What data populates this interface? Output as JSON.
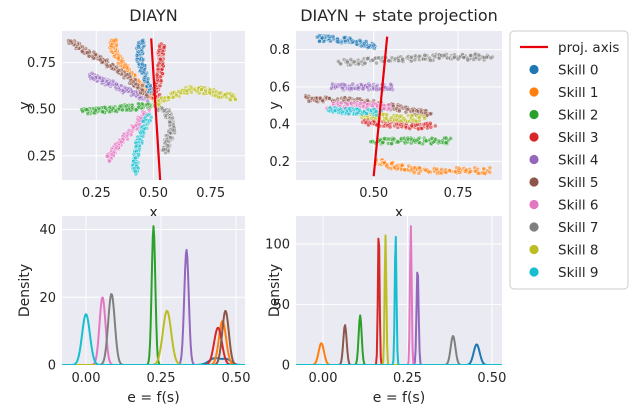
{
  "chart_data": [
    {
      "id": "p1",
      "type": "scatter",
      "title": "DIAYN",
      "xlabel": "x",
      "ylabel": "y",
      "xlim": [
        0.1,
        0.9
      ],
      "ylim": [
        0.12,
        0.92
      ],
      "xticks": [
        0.25,
        0.5,
        0.75
      ],
      "xticklabels": [
        "0.25",
        "0.50",
        "0.75"
      ],
      "yticks": [
        0.25,
        0.5,
        0.75
      ],
      "yticklabels": [
        "0.25",
        "0.50",
        "0.75"
      ],
      "grid": true,
      "projection_line": [
        [
          0.49,
          0.88
        ],
        [
          0.53,
          0.1
        ]
      ],
      "trajectories": [
        {
          "skill": 0,
          "points": [
            [
              0.49,
              0.58
            ],
            [
              0.47,
              0.65
            ],
            [
              0.45,
              0.72
            ],
            [
              0.44,
              0.78
            ],
            [
              0.44,
              0.83
            ],
            [
              0.45,
              0.86
            ]
          ]
        },
        {
          "skill": 1,
          "points": [
            [
              0.48,
              0.57
            ],
            [
              0.43,
              0.64
            ],
            [
              0.38,
              0.72
            ],
            [
              0.34,
              0.79
            ],
            [
              0.32,
              0.84
            ],
            [
              0.33,
              0.86
            ]
          ]
        },
        {
          "skill": 2,
          "points": [
            [
              0.48,
              0.52
            ],
            [
              0.4,
              0.51
            ],
            [
              0.32,
              0.5
            ],
            [
              0.25,
              0.49
            ],
            [
              0.19,
              0.49
            ]
          ]
        },
        {
          "skill": 3,
          "points": [
            [
              0.51,
              0.56
            ],
            [
              0.52,
              0.64
            ],
            [
              0.53,
              0.72
            ],
            [
              0.53,
              0.79
            ],
            [
              0.54,
              0.85
            ]
          ]
        },
        {
          "skill": 4,
          "points": [
            [
              0.47,
              0.56
            ],
            [
              0.4,
              0.59
            ],
            [
              0.33,
              0.63
            ],
            [
              0.27,
              0.66
            ],
            [
              0.22,
              0.68
            ]
          ]
        },
        {
          "skill": 5,
          "points": [
            [
              0.47,
              0.58
            ],
            [
              0.4,
              0.66
            ],
            [
              0.32,
              0.73
            ],
            [
              0.25,
              0.78
            ],
            [
              0.18,
              0.83
            ],
            [
              0.13,
              0.86
            ]
          ]
        },
        {
          "skill": 6,
          "points": [
            [
              0.47,
              0.48
            ],
            [
              0.42,
              0.41
            ],
            [
              0.37,
              0.34
            ],
            [
              0.33,
              0.28
            ],
            [
              0.3,
              0.23
            ]
          ]
        },
        {
          "skill": 7,
          "points": [
            [
              0.51,
              0.52
            ],
            [
              0.56,
              0.48
            ],
            [
              0.58,
              0.44
            ],
            [
              0.58,
              0.38
            ],
            [
              0.56,
              0.32
            ],
            [
              0.55,
              0.27
            ]
          ]
        },
        {
          "skill": 8,
          "points": [
            [
              0.51,
              0.53
            ],
            [
              0.58,
              0.57
            ],
            [
              0.65,
              0.61
            ],
            [
              0.72,
              0.6
            ],
            [
              0.79,
              0.58
            ],
            [
              0.86,
              0.56
            ]
          ]
        },
        {
          "skill": 9,
          "points": [
            [
              0.48,
              0.46
            ],
            [
              0.45,
              0.38
            ],
            [
              0.43,
              0.3
            ],
            [
              0.42,
              0.23
            ],
            [
              0.42,
              0.16
            ]
          ]
        }
      ]
    },
    {
      "id": "p2",
      "type": "scatter",
      "title": "DIAYN + state projection",
      "xlabel": "x",
      "ylabel": "y",
      "xlim": [
        0.27,
        0.88
      ],
      "ylim": [
        0.1,
        0.9
      ],
      "xticks": [
        0.5,
        0.75
      ],
      "xticklabels": [
        "0.50",
        "0.75"
      ],
      "yticks": [
        0.2,
        0.4,
        0.6,
        0.8
      ],
      "yticklabels": [
        "0.2",
        "0.4",
        "0.6",
        "0.8"
      ],
      "grid": true,
      "projection_line": [
        [
          0.54,
          0.87
        ],
        [
          0.5,
          0.12
        ]
      ],
      "trajectories": [
        {
          "skill": 0,
          "points": [
            [
              0.5,
              0.82
            ],
            [
              0.44,
              0.84
            ],
            [
              0.38,
              0.86
            ],
            [
              0.33,
              0.86
            ]
          ]
        },
        {
          "skill": 1,
          "points": [
            [
              0.51,
              0.2
            ],
            [
              0.57,
              0.17
            ],
            [
              0.64,
              0.15
            ],
            [
              0.75,
              0.15
            ],
            [
              0.85,
              0.15
            ]
          ]
        },
        {
          "skill": 2,
          "points": [
            [
              0.5,
              0.31
            ],
            [
              0.58,
              0.31
            ],
            [
              0.66,
              0.31
            ],
            [
              0.73,
              0.31
            ]
          ]
        },
        {
          "skill": 3,
          "points": [
            [
              0.47,
              0.41
            ],
            [
              0.55,
              0.4
            ],
            [
              0.62,
              0.39
            ],
            [
              0.68,
              0.39
            ]
          ]
        },
        {
          "skill": 4,
          "points": [
            [
              0.38,
              0.6
            ],
            [
              0.44,
              0.6
            ],
            [
              0.5,
              0.6
            ],
            [
              0.56,
              0.6
            ]
          ]
        },
        {
          "skill": 5,
          "points": [
            [
              0.3,
              0.54
            ],
            [
              0.38,
              0.53
            ],
            [
              0.47,
              0.52
            ],
            [
              0.53,
              0.5
            ],
            [
              0.62,
              0.47
            ],
            [
              0.67,
              0.45
            ]
          ]
        },
        {
          "skill": 6,
          "points": [
            [
              0.37,
              0.5
            ],
            [
              0.43,
              0.5
            ],
            [
              0.49,
              0.5
            ],
            [
              0.55,
              0.49
            ]
          ]
        },
        {
          "skill": 7,
          "points": [
            [
              0.4,
              0.73
            ],
            [
              0.5,
              0.74
            ],
            [
              0.6,
              0.75
            ],
            [
              0.7,
              0.76
            ],
            [
              0.78,
              0.76
            ],
            [
              0.85,
              0.76
            ]
          ]
        },
        {
          "skill": 8,
          "points": [
            [
              0.46,
              0.45
            ],
            [
              0.52,
              0.44
            ],
            [
              0.58,
              0.43
            ],
            [
              0.65,
              0.43
            ]
          ]
        },
        {
          "skill": 9,
          "points": [
            [
              0.37,
              0.48
            ],
            [
              0.42,
              0.47
            ],
            [
              0.46,
              0.47
            ],
            [
              0.52,
              0.46
            ]
          ]
        }
      ]
    },
    {
      "id": "p3",
      "type": "area",
      "title": "",
      "xlabel": "e = f(s)",
      "ylabel": "Density",
      "xlim": [
        -0.08,
        0.53
      ],
      "ylim": [
        0,
        44
      ],
      "xticks": [
        0.0,
        0.25,
        0.5
      ],
      "xticklabels": [
        "0.00",
        "0.25",
        "0.50"
      ],
      "yticks": [
        0,
        20,
        40
      ],
      "yticklabels": [
        "0",
        "20",
        "40"
      ],
      "grid": true,
      "series": [
        {
          "skill": 0,
          "peaks": [
            [
              0.43,
              2,
              0.02
            ],
            [
              0.47,
              1.5,
              0.015
            ]
          ]
        },
        {
          "skill": 1,
          "peaks": [
            [
              0.455,
              13,
              0.012
            ]
          ]
        },
        {
          "skill": 2,
          "peaks": [
            [
              0.225,
              41,
              0.006
            ]
          ]
        },
        {
          "skill": 3,
          "peaks": [
            [
              0.44,
              11,
              0.013
            ]
          ]
        },
        {
          "skill": 4,
          "peaks": [
            [
              0.335,
              34,
              0.0075
            ]
          ]
        },
        {
          "skill": 5,
          "peaks": [
            [
              0.465,
              16,
              0.011
            ]
          ]
        },
        {
          "skill": 6,
          "peaks": [
            [
              0.055,
              20,
              0.01
            ]
          ]
        },
        {
          "skill": 7,
          "peaks": [
            [
              0.085,
              21,
              0.011
            ]
          ]
        },
        {
          "skill": 8,
          "peaks": [
            [
              0.27,
              16,
              0.014
            ]
          ]
        },
        {
          "skill": 9,
          "peaks": [
            [
              0.0,
              15,
              0.013
            ]
          ]
        }
      ]
    },
    {
      "id": "p4",
      "type": "area",
      "title": "",
      "xlabel": "e = f(s)",
      "ylabel": "Density",
      "xlim": [
        -0.08,
        0.53
      ],
      "ylim": [
        0,
        123
      ],
      "xticks": [
        0.0,
        0.25,
        0.5
      ],
      "xticklabels": [
        "0.00",
        "0.25",
        "0.50"
      ],
      "yticks": [
        0,
        50,
        100
      ],
      "yticklabels": [
        "0",
        "50",
        "100"
      ],
      "grid": true,
      "series": [
        {
          "skill": 0,
          "peaks": [
            [
              0.455,
              17,
              0.009
            ]
          ]
        },
        {
          "skill": 1,
          "peaks": [
            [
              -0.005,
              18,
              0.008
            ]
          ]
        },
        {
          "skill": 2,
          "peaks": [
            [
              0.11,
              41,
              0.0045
            ]
          ]
        },
        {
          "skill": 3,
          "peaks": [
            [
              0.165,
              113,
              0.0025
            ]
          ]
        },
        {
          "skill": 4,
          "peaks": [
            [
              0.28,
              81,
              0.003
            ]
          ]
        },
        {
          "skill": 5,
          "peaks": [
            [
              0.065,
              33,
              0.005
            ]
          ]
        },
        {
          "skill": 6,
          "peaks": [
            [
              0.26,
              115,
              0.0025
            ]
          ]
        },
        {
          "skill": 7,
          "peaks": [
            [
              0.385,
              24,
              0.007
            ]
          ]
        },
        {
          "skill": 8,
          "peaks": [
            [
              0.185,
              107,
              0.0025
            ]
          ]
        },
        {
          "skill": 9,
          "peaks": [
            [
              0.215,
              109,
              0.0025
            ]
          ]
        }
      ]
    }
  ],
  "legend": {
    "placement": "right",
    "entries": [
      {
        "label": "proj. axis",
        "kind": "line",
        "color": "#e8000b"
      },
      {
        "label": "Skill 0",
        "kind": "marker",
        "color": "#1f77b4"
      },
      {
        "label": "Skill 1",
        "kind": "marker",
        "color": "#ff7f0e"
      },
      {
        "label": "Skill 2",
        "kind": "marker",
        "color": "#2ca02c"
      },
      {
        "label": "Skill 3",
        "kind": "marker",
        "color": "#d62728"
      },
      {
        "label": "Skill 4",
        "kind": "marker",
        "color": "#9467bd"
      },
      {
        "label": "Skill 5",
        "kind": "marker",
        "color": "#8c564b"
      },
      {
        "label": "Skill 6",
        "kind": "marker",
        "color": "#e377c2"
      },
      {
        "label": "Skill 7",
        "kind": "marker",
        "color": "#7f7f7f"
      },
      {
        "label": "Skill 8",
        "kind": "marker",
        "color": "#bcbd22"
      },
      {
        "label": "Skill 9",
        "kind": "marker",
        "color": "#17becf"
      }
    ]
  },
  "colors": {
    "skills": [
      "#1f77b4",
      "#ff7f0e",
      "#2ca02c",
      "#d62728",
      "#9467bd",
      "#8c564b",
      "#e377c2",
      "#7f7f7f",
      "#bcbd22",
      "#17becf"
    ],
    "projection": "#e8000b",
    "axes_background": "#eaeaf2"
  }
}
